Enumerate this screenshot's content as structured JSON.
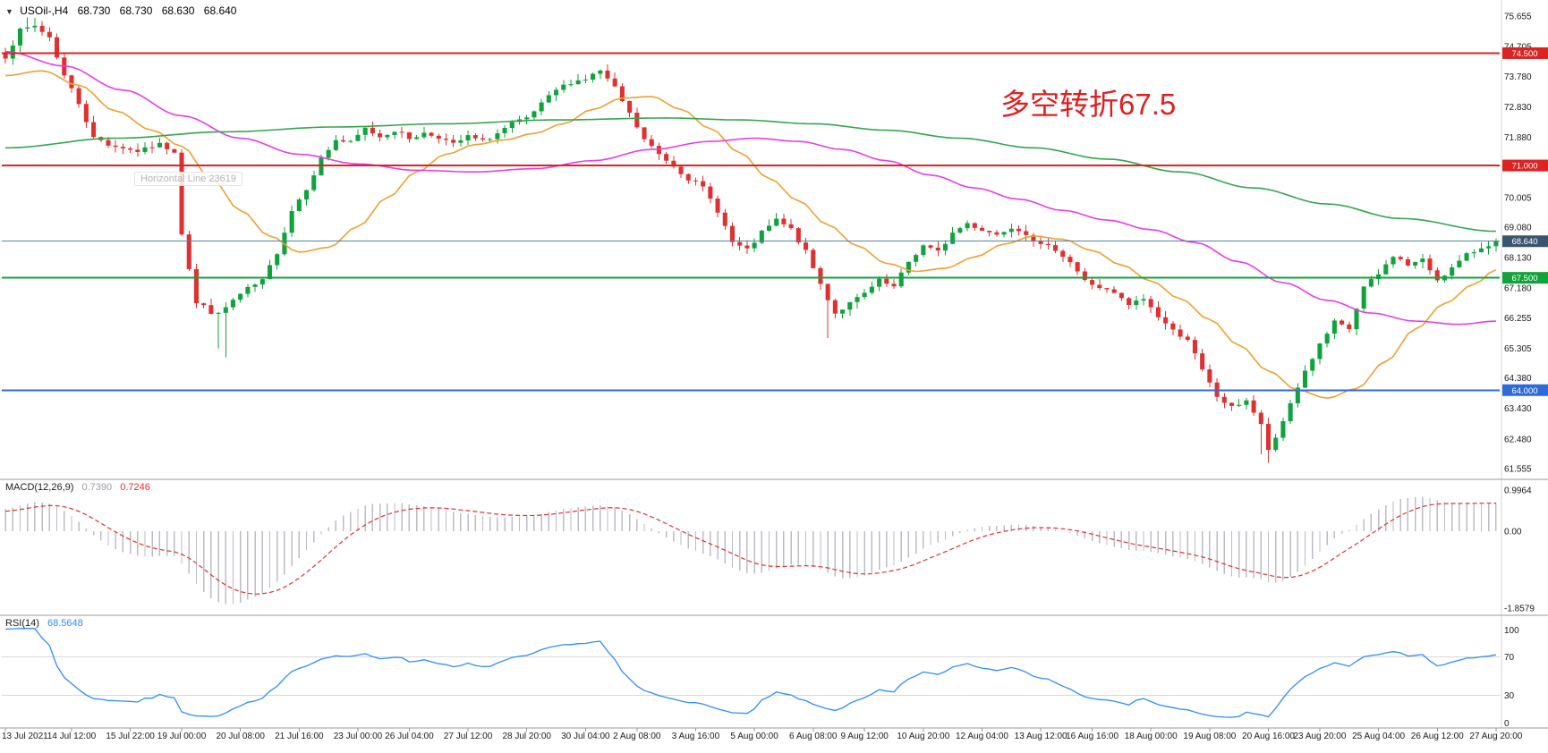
{
  "header": {
    "symbol_period": "USOil-,H4",
    "open": "68.730",
    "high": "68.730",
    "low": "68.630",
    "close": "68.640"
  },
  "annotation": {
    "text": "多空转折67.5",
    "color": "#e02020"
  },
  "object_tooltip": "Horizontal Line 23619",
  "indicators": {
    "macd": {
      "label": "MACD(12,26,9)",
      "value_main": "0.7390",
      "value_signal": "0.7246",
      "value_main_color": "#9a9aa2",
      "value_signal_color": "#e03030",
      "axis_ticks": [
        "0.9964",
        "0.00",
        "-1.8579"
      ]
    },
    "rsi": {
      "label": "RSI(14)",
      "value": "68.5648",
      "value_color": "#2f8dfd",
      "axis_ticks": [
        "100",
        "70",
        "30",
        "0"
      ],
      "levels": [
        70,
        30
      ]
    }
  },
  "chart_data": {
    "type": "candlestick",
    "symbol": "USOil-",
    "timeframe": "H4",
    "candle_count": 204,
    "last_close": 68.64,
    "up_color": "#0fa33c",
    "down_color": "#e03030",
    "noise_seed": 7,
    "noise_amp": 0.14,
    "wick_amp": 0.2,
    "warmup": {
      "start": 71.8,
      "end": 74.35,
      "count": 26
    },
    "price_axis_ticks": [
      "75.655",
      "74.705",
      "73.780",
      "72.830",
      "71.880",
      "70.955",
      "70.005",
      "69.080",
      "68.130",
      "67.180",
      "66.255",
      "65.305",
      "64.380",
      "63.430",
      "62.480",
      "61.555"
    ],
    "time_axis_labels": [
      {
        "t": "13 Jul 2021",
        "i": 0
      },
      {
        "t": "14 Jul 12:00",
        "i": 9
      },
      {
        "t": "15 Jul 22:00",
        "i": 17
      },
      {
        "t": "19 Jul 00:00",
        "i": 24
      },
      {
        "t": "20 Jul 08:00",
        "i": 32
      },
      {
        "t": "21 Jul 16:00",
        "i": 40
      },
      {
        "t": "23 Jul 00:00",
        "i": 48
      },
      {
        "t": "26 Jul 04:00",
        "i": 55
      },
      {
        "t": "27 Jul 12:00",
        "i": 63
      },
      {
        "t": "28 Jul 20:00",
        "i": 71
      },
      {
        "t": "30 Jul 04:00",
        "i": 79
      },
      {
        "t": "2 Aug 08:00",
        "i": 86
      },
      {
        "t": "3 Aug 16:00",
        "i": 94
      },
      {
        "t": "5 Aug 00:00",
        "i": 102
      },
      {
        "t": "6 Aug 08:00",
        "i": 110
      },
      {
        "t": "9 Aug 12:00",
        "i": 117
      },
      {
        "t": "10 Aug 20:00",
        "i": 125
      },
      {
        "t": "12 Aug 04:00",
        "i": 133
      },
      {
        "t": "13 Aug 12:00",
        "i": 141
      },
      {
        "t": "16 Aug 16:00",
        "i": 148
      },
      {
        "t": "18 Aug 00:00",
        "i": 156
      },
      {
        "t": "19 Aug 08:00",
        "i": 164
      },
      {
        "t": "20 Aug 16:00",
        "i": 172
      },
      {
        "t": "23 Aug 20:00",
        "i": 179
      },
      {
        "t": "25 Aug 04:00",
        "i": 187
      },
      {
        "t": "26 Aug 12:00",
        "i": 195
      },
      {
        "t": "27 Aug 20:00",
        "i": 203
      }
    ],
    "close_path_anchors": [
      [
        0,
        74.4
      ],
      [
        2,
        75.2
      ],
      [
        4,
        75.35
      ],
      [
        6,
        75.0
      ],
      [
        8,
        73.8
      ],
      [
        10,
        72.95
      ],
      [
        12,
        71.85
      ],
      [
        15,
        71.6
      ],
      [
        18,
        71.45
      ],
      [
        21,
        71.65
      ],
      [
        23,
        71.45
      ],
      [
        24,
        68.9
      ],
      [
        26,
        66.7
      ],
      [
        29,
        66.35
      ],
      [
        31,
        66.8
      ],
      [
        33,
        67.15
      ],
      [
        35,
        67.4
      ],
      [
        37,
        68.3
      ],
      [
        39,
        69.6
      ],
      [
        41,
        70.3
      ],
      [
        43,
        71.2
      ],
      [
        45,
        71.8
      ],
      [
        47,
        71.7
      ],
      [
        49,
        72.15
      ],
      [
        51,
        71.9
      ],
      [
        53,
        72.1
      ],
      [
        55,
        71.85
      ],
      [
        57,
        72.0
      ],
      [
        59,
        71.9
      ],
      [
        61,
        71.65
      ],
      [
        63,
        71.9
      ],
      [
        65,
        71.75
      ],
      [
        67,
        72.0
      ],
      [
        69,
        72.3
      ],
      [
        71,
        72.45
      ],
      [
        73,
        72.9
      ],
      [
        75,
        73.35
      ],
      [
        77,
        73.6
      ],
      [
        79,
        73.7
      ],
      [
        81,
        73.95
      ],
      [
        83,
        73.4
      ],
      [
        85,
        72.6
      ],
      [
        87,
        71.8
      ],
      [
        89,
        71.35
      ],
      [
        91,
        71.0
      ],
      [
        93,
        70.6
      ],
      [
        95,
        70.3
      ],
      [
        97,
        69.6
      ],
      [
        99,
        68.6
      ],
      [
        101,
        68.35
      ],
      [
        103,
        68.9
      ],
      [
        105,
        69.3
      ],
      [
        107,
        69.0
      ],
      [
        109,
        68.3
      ],
      [
        111,
        67.3
      ],
      [
        113,
        66.4
      ],
      [
        115,
        66.7
      ],
      [
        117,
        67.0
      ],
      [
        119,
        67.4
      ],
      [
        121,
        67.2
      ],
      [
        123,
        68.0
      ],
      [
        125,
        68.5
      ],
      [
        127,
        68.3
      ],
      [
        129,
        68.9
      ],
      [
        131,
        69.2
      ],
      [
        133,
        69.0
      ],
      [
        135,
        68.85
      ],
      [
        137,
        69.1
      ],
      [
        139,
        68.9
      ],
      [
        141,
        68.5
      ],
      [
        143,
        68.4
      ],
      [
        145,
        68.0
      ],
      [
        147,
        67.4
      ],
      [
        149,
        67.2
      ],
      [
        151,
        67.0
      ],
      [
        153,
        66.65
      ],
      [
        155,
        66.85
      ],
      [
        157,
        66.3
      ],
      [
        159,
        65.85
      ],
      [
        161,
        65.6
      ],
      [
        163,
        64.6
      ],
      [
        165,
        63.8
      ],
      [
        167,
        63.45
      ],
      [
        169,
        63.7
      ],
      [
        171,
        62.9
      ],
      [
        172,
        62.15
      ],
      [
        173,
        62.45
      ],
      [
        175,
        63.6
      ],
      [
        177,
        64.6
      ],
      [
        179,
        65.4
      ],
      [
        181,
        66.1
      ],
      [
        183,
        65.9
      ],
      [
        185,
        67.2
      ],
      [
        187,
        67.6
      ],
      [
        189,
        68.2
      ],
      [
        191,
        67.9
      ],
      [
        193,
        68.05
      ],
      [
        195,
        67.45
      ],
      [
        197,
        67.8
      ],
      [
        199,
        68.2
      ],
      [
        201,
        68.45
      ],
      [
        203,
        68.64
      ]
    ],
    "wick_overrides": [
      {
        "i": 3,
        "high": 75.62
      },
      {
        "i": 4,
        "high": 75.6
      },
      {
        "i": 24,
        "high": 71.5
      },
      {
        "i": 29,
        "low": 65.3
      },
      {
        "i": 30,
        "low": 65.02
      },
      {
        "i": 112,
        "low": 65.62
      },
      {
        "i": 171,
        "low": 62.0
      },
      {
        "i": 172,
        "low": 61.74
      }
    ],
    "moving_averages": [
      {
        "name": "ma-fast-line",
        "color": "#f0a030",
        "anchors": [
          [
            0,
            73.8
          ],
          [
            5,
            73.95
          ],
          [
            10,
            73.5
          ],
          [
            15,
            72.7
          ],
          [
            20,
            72.1
          ],
          [
            24,
            71.6
          ],
          [
            28,
            70.6
          ],
          [
            32,
            69.6
          ],
          [
            36,
            68.8
          ],
          [
            40,
            68.3
          ],
          [
            44,
            68.45
          ],
          [
            48,
            69.1
          ],
          [
            52,
            70.0
          ],
          [
            56,
            70.8
          ],
          [
            60,
            71.35
          ],
          [
            64,
            71.65
          ],
          [
            68,
            71.8
          ],
          [
            72,
            72.0
          ],
          [
            76,
            72.3
          ],
          [
            80,
            72.75
          ],
          [
            84,
            73.1
          ],
          [
            88,
            73.15
          ],
          [
            92,
            72.75
          ],
          [
            96,
            72.15
          ],
          [
            100,
            71.4
          ],
          [
            104,
            70.6
          ],
          [
            108,
            69.9
          ],
          [
            112,
            69.15
          ],
          [
            116,
            68.5
          ],
          [
            120,
            67.95
          ],
          [
            124,
            67.7
          ],
          [
            128,
            67.8
          ],
          [
            132,
            68.15
          ],
          [
            136,
            68.55
          ],
          [
            140,
            68.8
          ],
          [
            144,
            68.7
          ],
          [
            148,
            68.35
          ],
          [
            152,
            67.9
          ],
          [
            156,
            67.4
          ],
          [
            160,
            66.85
          ],
          [
            164,
            66.2
          ],
          [
            168,
            65.4
          ],
          [
            172,
            64.6
          ],
          [
            176,
            64.0
          ],
          [
            180,
            63.75
          ],
          [
            184,
            64.05
          ],
          [
            188,
            64.9
          ],
          [
            192,
            65.9
          ],
          [
            196,
            66.7
          ],
          [
            200,
            67.3
          ],
          [
            203,
            67.75
          ]
        ]
      },
      {
        "name": "ma-mid-line",
        "color": "#e93ce9",
        "anchors": [
          [
            0,
            74.55
          ],
          [
            8,
            74.1
          ],
          [
            16,
            73.35
          ],
          [
            24,
            72.55
          ],
          [
            32,
            71.85
          ],
          [
            40,
            71.35
          ],
          [
            48,
            71.05
          ],
          [
            56,
            70.85
          ],
          [
            64,
            70.8
          ],
          [
            72,
            70.9
          ],
          [
            80,
            71.15
          ],
          [
            88,
            71.5
          ],
          [
            96,
            71.75
          ],
          [
            102,
            71.85
          ],
          [
            108,
            71.75
          ],
          [
            114,
            71.5
          ],
          [
            120,
            71.15
          ],
          [
            126,
            70.7
          ],
          [
            132,
            70.3
          ],
          [
            138,
            69.95
          ],
          [
            144,
            69.6
          ],
          [
            150,
            69.3
          ],
          [
            156,
            69.0
          ],
          [
            162,
            68.6
          ],
          [
            168,
            68.0
          ],
          [
            174,
            67.35
          ],
          [
            180,
            66.8
          ],
          [
            186,
            66.4
          ],
          [
            192,
            66.15
          ],
          [
            198,
            66.05
          ],
          [
            203,
            66.15
          ]
        ]
      },
      {
        "name": "ma-slow-line",
        "color": "#33a64c",
        "anchors": [
          [
            0,
            71.55
          ],
          [
            15,
            71.85
          ],
          [
            30,
            72.05
          ],
          [
            45,
            72.2
          ],
          [
            60,
            72.3
          ],
          [
            75,
            72.42
          ],
          [
            90,
            72.48
          ],
          [
            100,
            72.42
          ],
          [
            110,
            72.3
          ],
          [
            120,
            72.1
          ],
          [
            130,
            71.85
          ],
          [
            140,
            71.55
          ],
          [
            150,
            71.2
          ],
          [
            160,
            70.8
          ],
          [
            170,
            70.3
          ],
          [
            180,
            69.8
          ],
          [
            190,
            69.35
          ],
          [
            203,
            68.95
          ]
        ]
      }
    ],
    "hlines": [
      {
        "price": 74.5,
        "label": "74.500",
        "color": "#dd2222",
        "width": 2
      },
      {
        "price": 71.0,
        "label": "71.000",
        "color": "#dd2222",
        "width": 2
      },
      {
        "price": 68.64,
        "label": "68.640",
        "color": "#4f84a8",
        "width": 1,
        "label_bg": "#3a556e",
        "is_bid": true
      },
      {
        "price": 67.5,
        "label": "67.500",
        "color": "#12a33c",
        "width": 2
      },
      {
        "price": 64.0,
        "label": "64.000",
        "color": "#2e6bd8",
        "width": 2
      }
    ],
    "macd": {
      "fast": 12,
      "slow": 26,
      "signal": 9,
      "hist_color": "#bcbcc6",
      "signal_color": "#e03030"
    },
    "rsi": {
      "period": 14,
      "color": "#2f8dfd"
    }
  }
}
